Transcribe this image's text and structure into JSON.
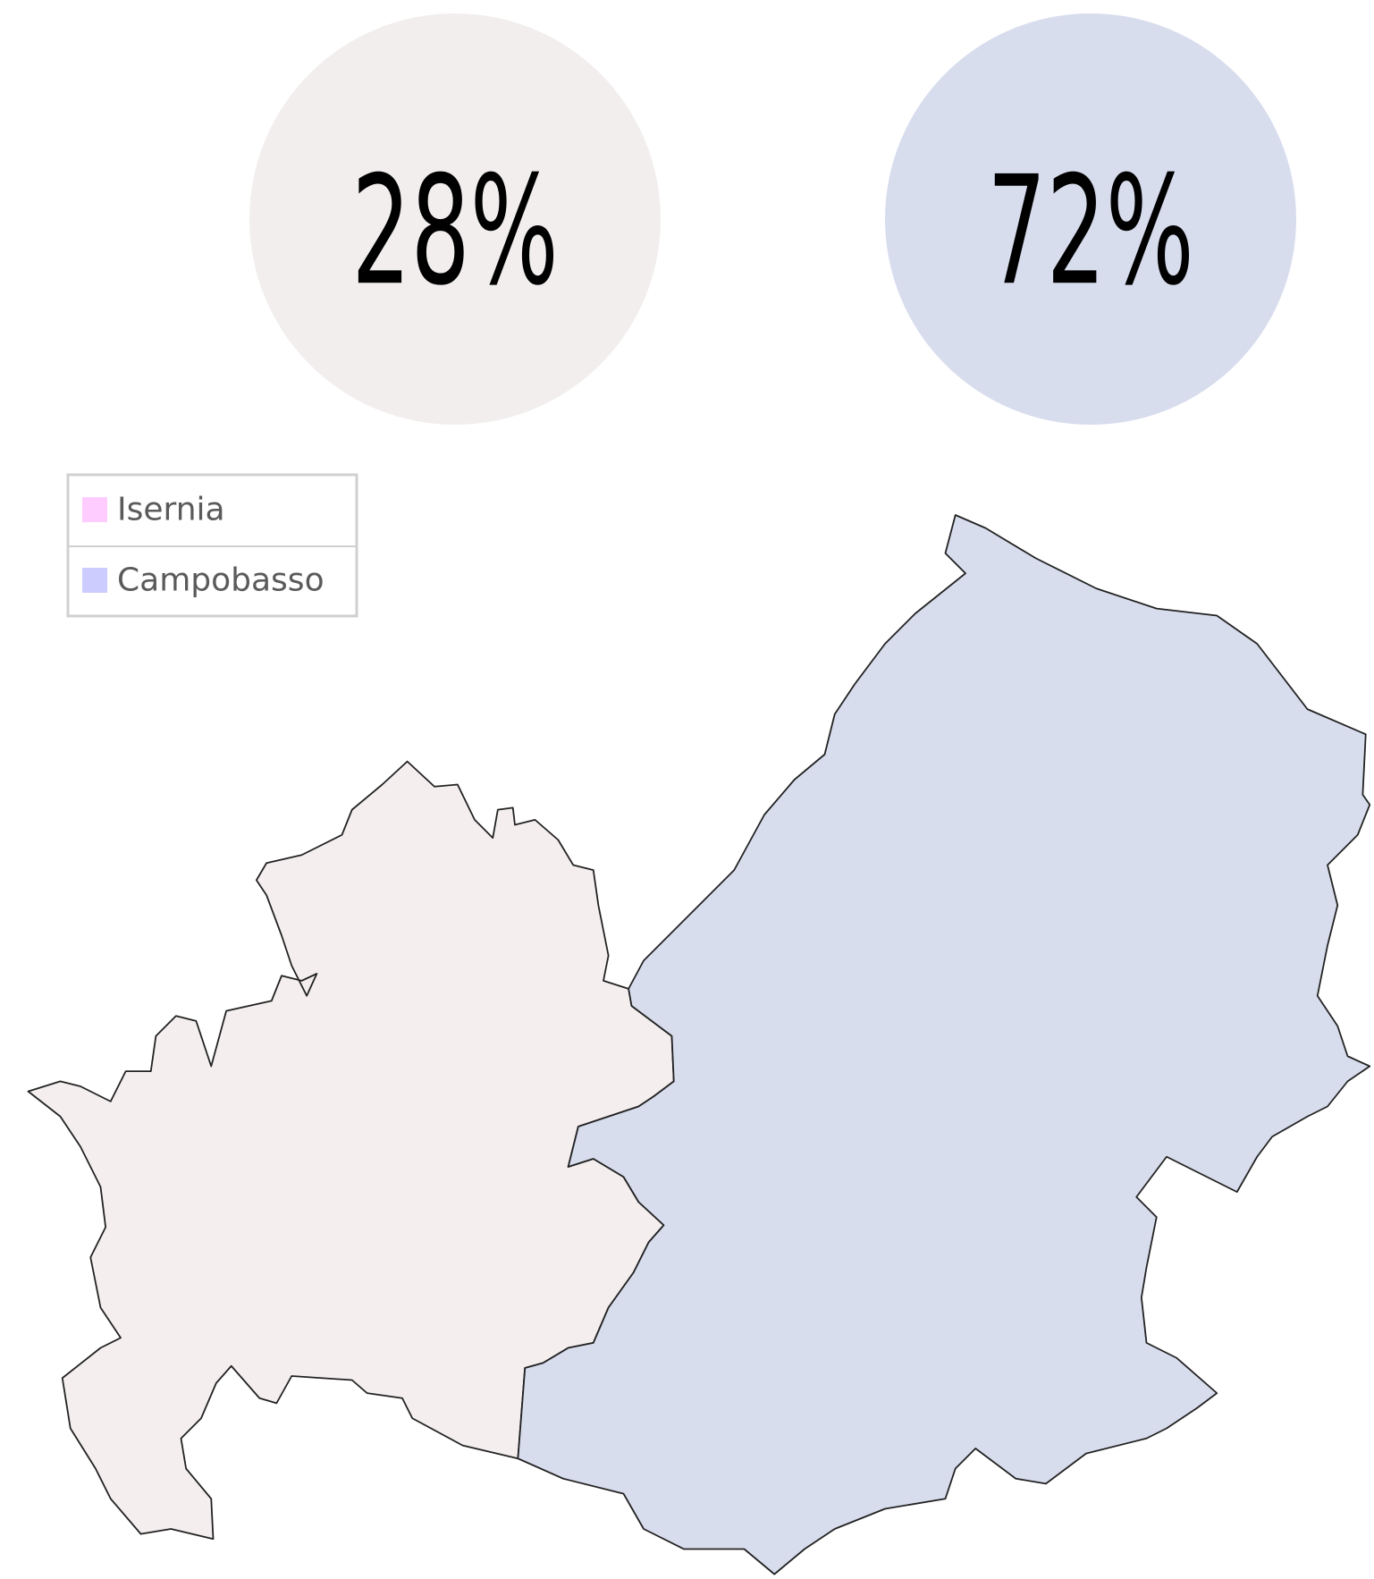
{
  "regions": [
    {
      "name": "Isernia",
      "share": "28%",
      "legend_color": "#ffccff",
      "fill": "#f4eeef",
      "circle_color": "#f2eeee"
    },
    {
      "name": "Campobasso",
      "share": "72%",
      "legend_color": "#ccccff",
      "fill": "#d8ddee",
      "circle_color": "#d8ddee"
    }
  ]
}
